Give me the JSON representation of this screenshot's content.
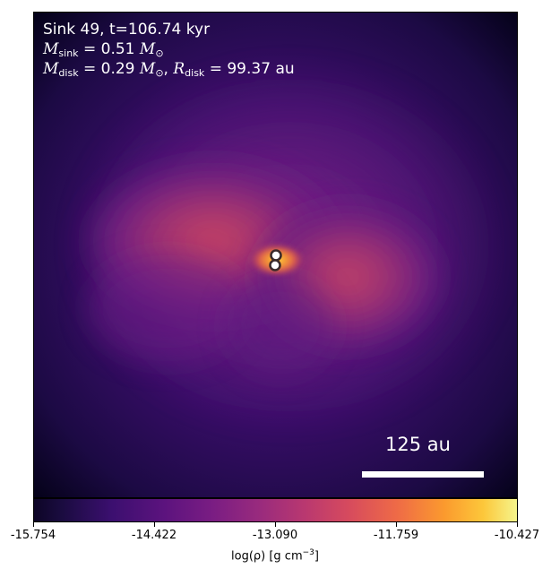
{
  "annotation": {
    "title": "Sink 49, t=106.74 kyr",
    "msink_sub": "sink",
    "msink_value": "0.51",
    "mdisk_sub": "disk",
    "mdisk_value": "0.29",
    "rdisk_sub": "disk",
    "rdisk_value": "99.37",
    "rdisk_unit": "au"
  },
  "scale_bar": {
    "label": "125 au"
  },
  "colorbar": {
    "ticks": [
      "-15.754",
      "-14.422",
      "-13.090",
      "-11.759",
      "-10.427"
    ],
    "label_prefix": "log(ρ) [g cm",
    "label_exp": "−3",
    "label_suffix": "]",
    "colormap": "plasma-like (black → purple → orange → yellow)"
  },
  "colors": {
    "background": "#1a0b3e",
    "lobe": "#c0405f",
    "core": "#f7a033",
    "sink_marker_fill": "#ffffff",
    "sink_marker_edge": "#3a2a2a"
  },
  "sinks": [
    {
      "name": "sink-upper",
      "marker": "white circle"
    },
    {
      "name": "sink-lower",
      "marker": "white circle"
    }
  ]
}
